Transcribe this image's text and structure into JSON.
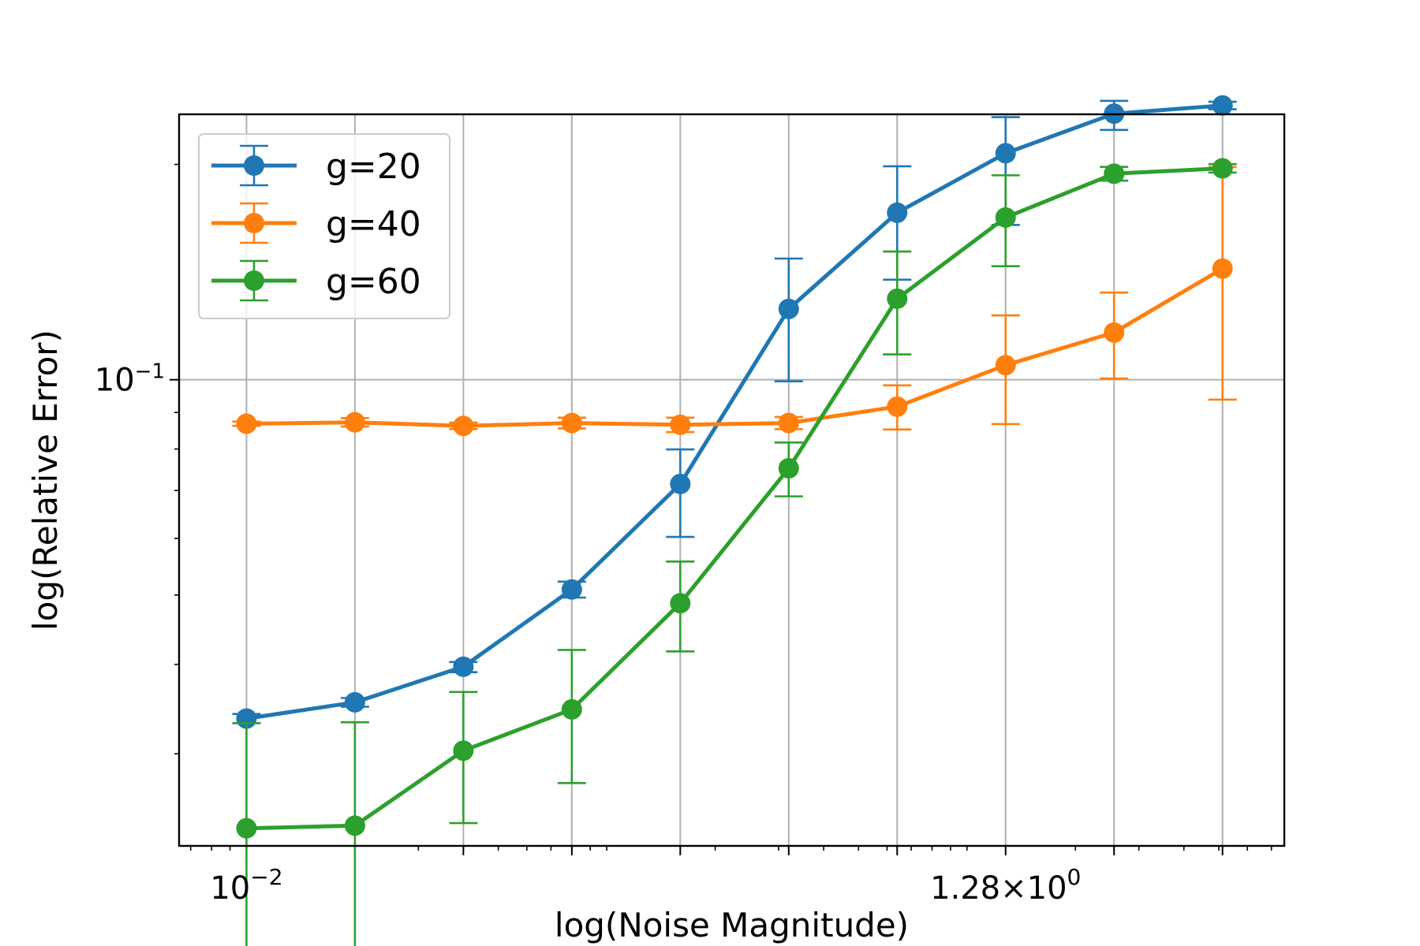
{
  "chart_data": {
    "type": "line",
    "title": "",
    "xlabel": "log(Noise Magnitude)",
    "ylabel": "log(Relative Error)",
    "xscale": "log2",
    "yscale": "log",
    "x": [
      0.01,
      0.02,
      0.04,
      0.08,
      0.16,
      0.32,
      0.64,
      1.28,
      2.56,
      5.12
    ],
    "xlim": [
      0.0065,
      7.6
    ],
    "ylim": [
      0.0223,
      0.235
    ],
    "x_tick_labels": [
      {
        "x": 0.01,
        "base": "10",
        "exp": "−2",
        "mult": ""
      },
      {
        "x": 1.28,
        "base": "10",
        "exp": "0",
        "mult": "1.28×"
      }
    ],
    "y_tick_labels": [
      {
        "y": 0.1,
        "base": "10",
        "exp": "−1"
      }
    ],
    "grid": true,
    "legend_position": "top-left",
    "series": [
      {
        "name": "g=20",
        "color": "#1f77b4",
        "values": [
          0.0336,
          0.0354,
          0.0397,
          0.0509,
          0.0715,
          0.1256,
          0.1712,
          0.2073,
          0.2355,
          0.2418
        ],
        "err_low": [
          0.0331,
          0.0349,
          0.039,
          0.0496,
          0.0603,
          0.0995,
          0.138,
          0.1646,
          0.2235,
          0.2389
        ],
        "err_high": [
          0.0341,
          0.0359,
          0.0403,
          0.0522,
          0.0799,
          0.1477,
          0.1988,
          0.2329,
          0.2454,
          0.2447
        ]
      },
      {
        "name": "g=40",
        "color": "#ff7f0e",
        "values": [
          0.0868,
          0.0872,
          0.0862,
          0.087,
          0.0865,
          0.087,
          0.0917,
          0.1048,
          0.1164,
          0.143
        ],
        "err_low": [
          0.0862,
          0.086,
          0.0853,
          0.0855,
          0.0845,
          0.0853,
          0.0852,
          0.0867,
          0.1004,
          0.0938
        ],
        "err_high": [
          0.0874,
          0.0884,
          0.0871,
          0.0885,
          0.0885,
          0.0887,
          0.0982,
          0.123,
          0.1324,
          0.1983
        ]
      },
      {
        "name": "g=60",
        "color": "#2ca02c",
        "values": [
          0.0236,
          0.0238,
          0.0303,
          0.0346,
          0.0487,
          0.0752,
          0.1298,
          0.1686,
          0.1941,
          0.1975
        ],
        "err_low": [
          0.0141,
          0.0144,
          0.024,
          0.0273,
          0.0417,
          0.0687,
          0.1085,
          0.1441,
          0.1898,
          0.1948
        ],
        "err_high": [
          0.0331,
          0.0332,
          0.0366,
          0.0419,
          0.0557,
          0.0817,
          0.1511,
          0.1931,
          0.1984,
          0.2002
        ]
      }
    ]
  }
}
